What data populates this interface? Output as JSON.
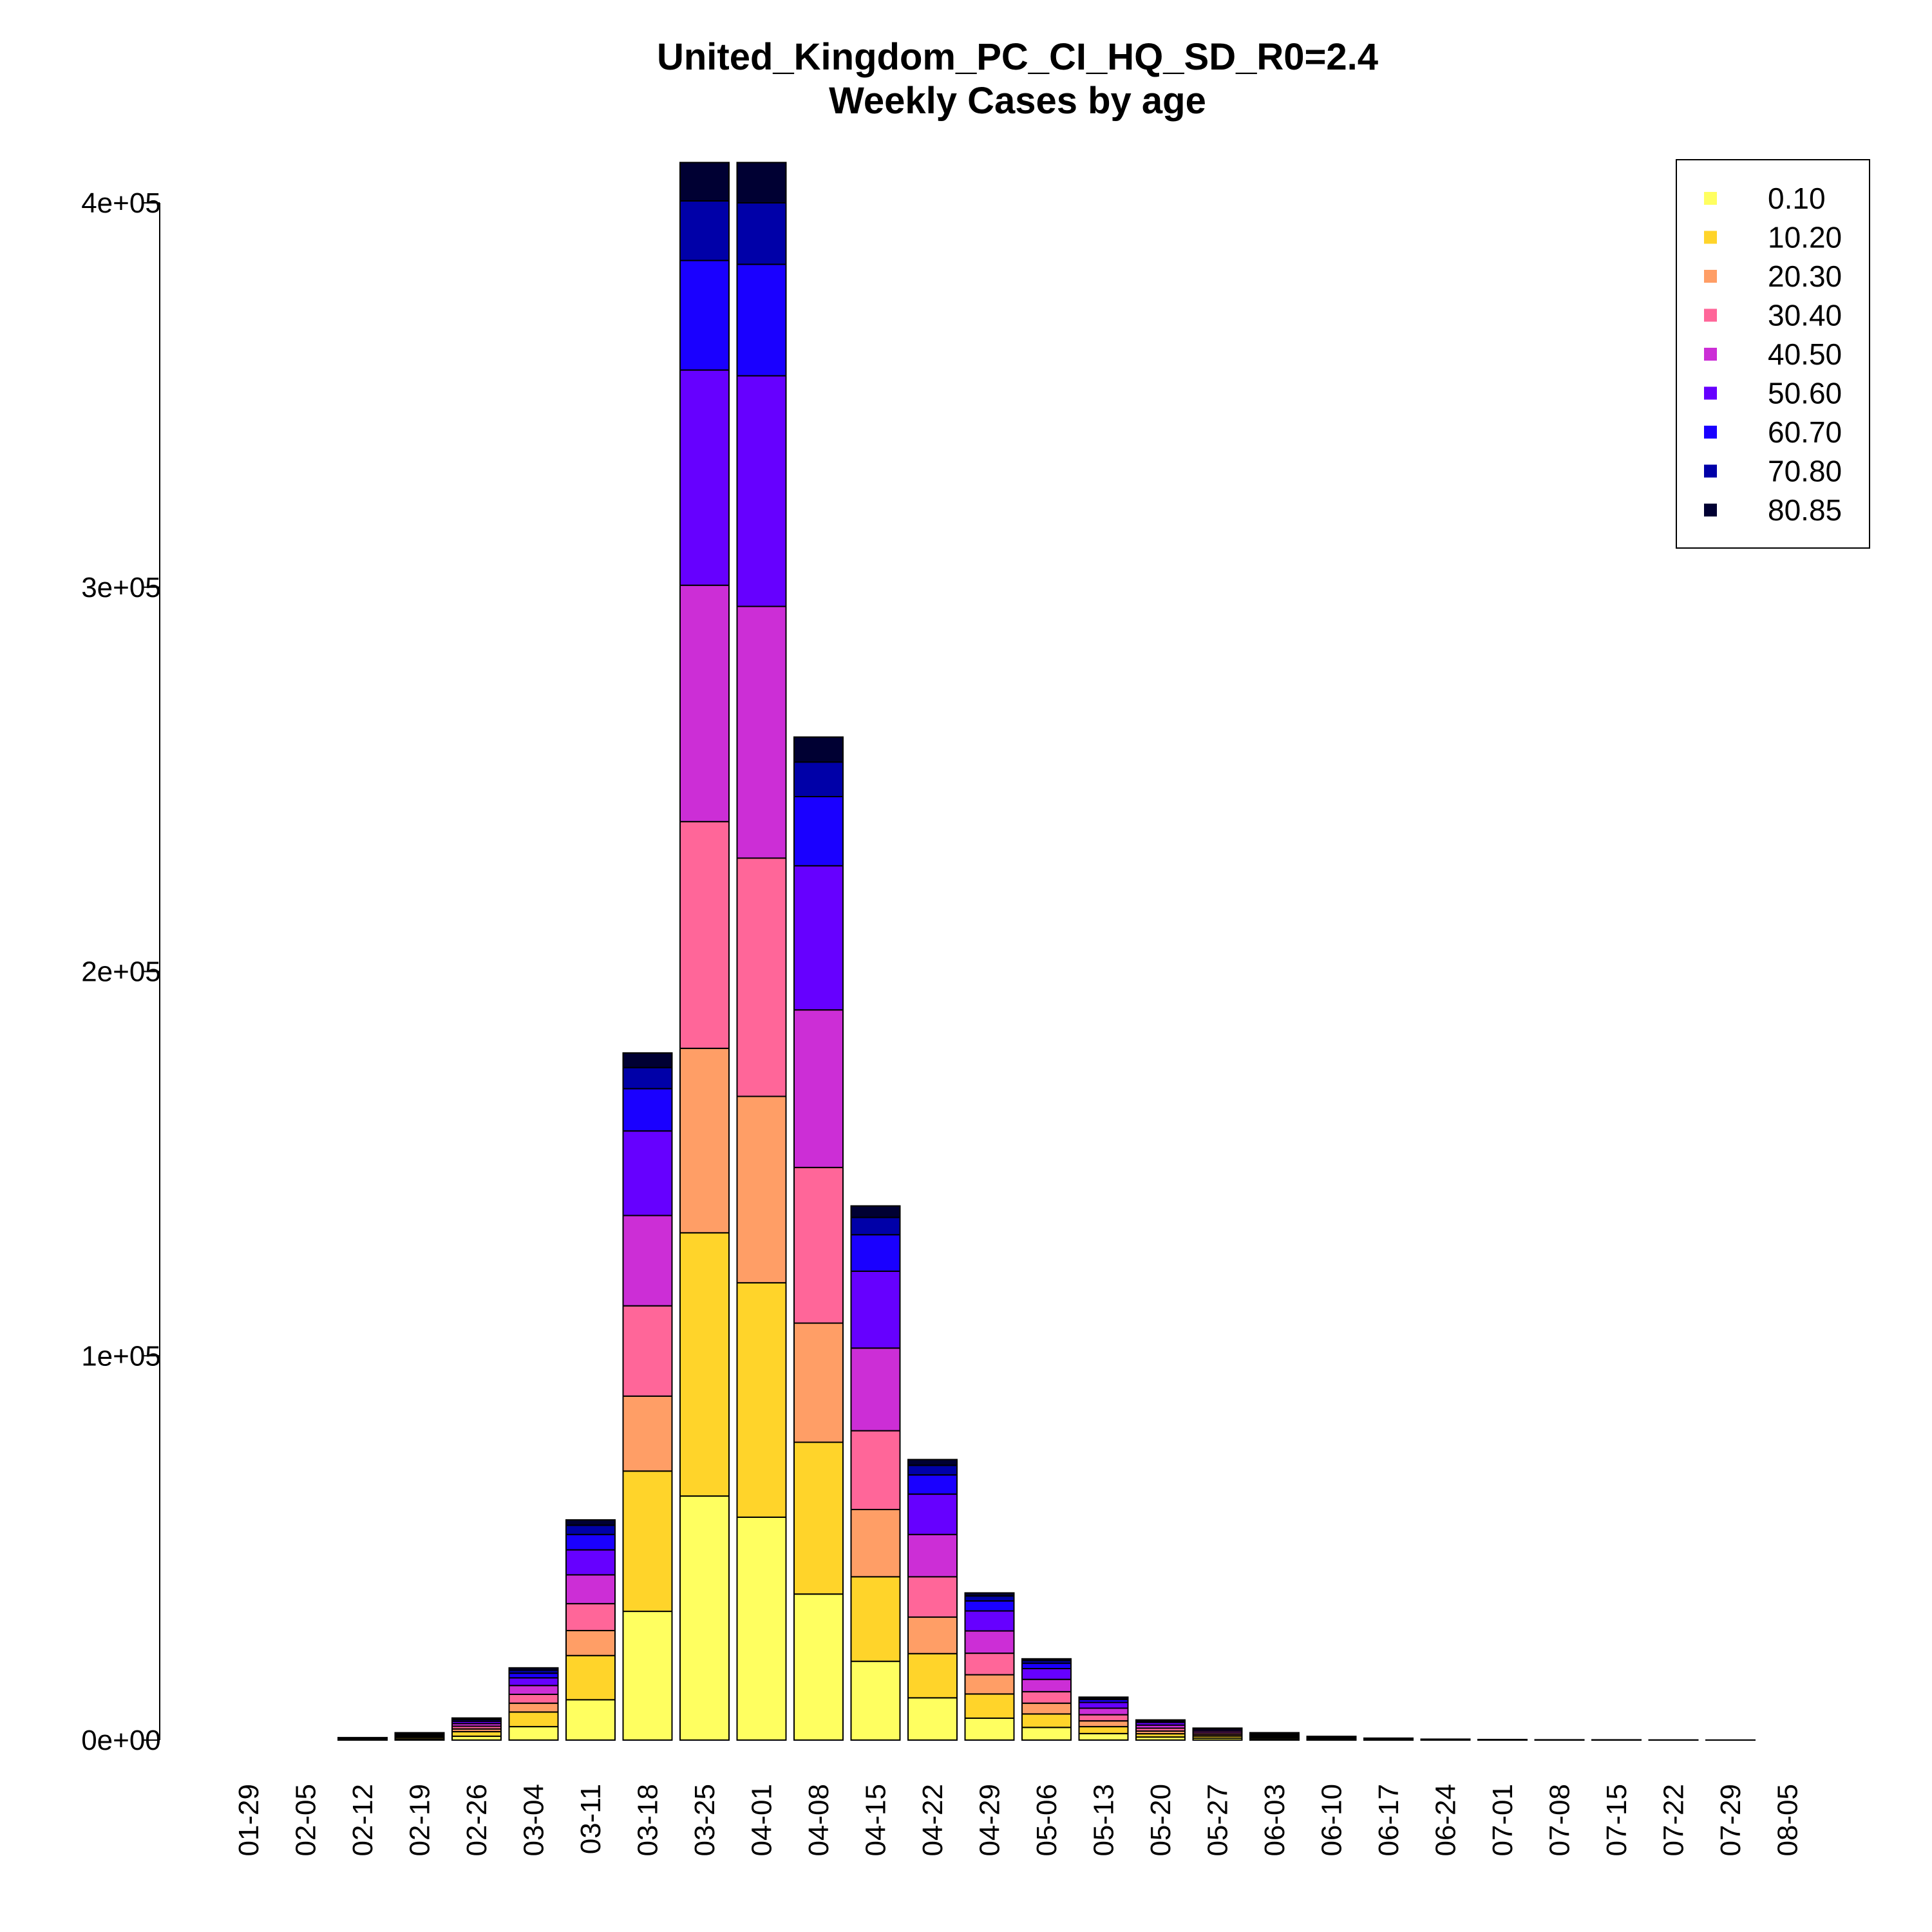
{
  "chart_data": {
    "type": "bar",
    "stacked": true,
    "title": "United_Kingdom_PC_CI_HQ_SD_R0=2.4",
    "subtitle": "Weekly Cases by age",
    "xlabel": "",
    "ylabel": "",
    "ylim": [
      0,
      410000
    ],
    "y_ticks": [
      {
        "value": 0,
        "label": "0e+00"
      },
      {
        "value": 100000,
        "label": "1e+05"
      },
      {
        "value": 200000,
        "label": "2e+05"
      },
      {
        "value": 300000,
        "label": "3e+05"
      },
      {
        "value": 400000,
        "label": "4e+05"
      }
    ],
    "legend_position": "top-right",
    "categories": [
      "01-29",
      "02-05",
      "02-12",
      "02-19",
      "02-26",
      "03-04",
      "03-11",
      "03-18",
      "03-25",
      "04-01",
      "04-08",
      "04-15",
      "04-22",
      "04-29",
      "05-06",
      "05-13",
      "05-20",
      "05-27",
      "06-03",
      "06-10",
      "06-17",
      "06-24",
      "07-01",
      "07-08",
      "07-15",
      "07-22",
      "07-29",
      "08-05"
    ],
    "series": [
      {
        "name": "0.10",
        "color": "#FFFF60",
        "values": [
          0,
          0,
          100,
          300,
          1000,
          3500,
          10500,
          33500,
          63500,
          58000,
          38000,
          20500,
          11000,
          5700,
          3300,
          1700,
          800,
          500,
          300,
          150,
          80,
          40,
          20,
          10,
          5,
          2,
          1,
          0
        ]
      },
      {
        "name": "10.20",
        "color": "#FFD42A",
        "values": [
          0,
          0,
          150,
          400,
          1200,
          3800,
          11500,
          36500,
          68500,
          61000,
          39500,
          22000,
          11500,
          6300,
          3500,
          1800,
          850,
          550,
          350,
          170,
          90,
          45,
          20,
          10,
          5,
          2,
          1,
          0
        ]
      },
      {
        "name": "20.30",
        "color": "#FF9E66",
        "values": [
          0,
          0,
          80,
          250,
          700,
          2300,
          6500,
          19500,
          48000,
          48500,
          31000,
          17500,
          9500,
          5000,
          2800,
          1500,
          700,
          400,
          250,
          130,
          70,
          35,
          15,
          8,
          4,
          2,
          1,
          0
        ]
      },
      {
        "name": "30.40",
        "color": "#FF6699",
        "values": [
          0,
          0,
          80,
          250,
          700,
          2300,
          7000,
          23500,
          59000,
          62000,
          40500,
          20500,
          10500,
          5600,
          3000,
          1600,
          750,
          450,
          280,
          140,
          75,
          35,
          15,
          8,
          4,
          2,
          1,
          0
        ]
      },
      {
        "name": "40.50",
        "color": "#CC2ED6",
        "values": [
          0,
          0,
          80,
          250,
          700,
          2300,
          7500,
          23500,
          61500,
          65500,
          41000,
          21500,
          11000,
          5800,
          3200,
          1700,
          800,
          450,
          280,
          140,
          75,
          35,
          15,
          8,
          4,
          2,
          1,
          0
        ]
      },
      {
        "name": "50.60",
        "color": "#6600FF",
        "values": [
          0,
          0,
          60,
          200,
          600,
          2000,
          6500,
          22000,
          56000,
          60000,
          37500,
          20000,
          10500,
          5200,
          2800,
          1500,
          700,
          400,
          250,
          120,
          65,
          30,
          15,
          8,
          4,
          2,
          1,
          0
        ]
      },
      {
        "name": "60.70",
        "color": "#1A00FF",
        "values": [
          0,
          0,
          40,
          120,
          400,
          1200,
          4000,
          11000,
          28500,
          29000,
          18000,
          9500,
          5000,
          2600,
          1400,
          750,
          350,
          200,
          120,
          60,
          30,
          15,
          8,
          4,
          2,
          1,
          0,
          0
        ]
      },
      {
        "name": "70.80",
        "color": "#0000A8",
        "values": [
          0,
          0,
          30,
          90,
          250,
          800,
          2400,
          5500,
          15500,
          16000,
          9000,
          4500,
          2500,
          1300,
          700,
          380,
          180,
          100,
          60,
          30,
          15,
          8,
          4,
          2,
          1,
          0,
          0,
          0
        ]
      },
      {
        "name": "80.85",
        "color": "#000033",
        "values": [
          0,
          0,
          20,
          60,
          200,
          600,
          1400,
          3800,
          10000,
          10500,
          6500,
          3000,
          1500,
          800,
          450,
          250,
          120,
          70,
          40,
          20,
          10,
          5,
          2,
          1,
          0,
          0,
          0,
          0
        ]
      }
    ]
  }
}
